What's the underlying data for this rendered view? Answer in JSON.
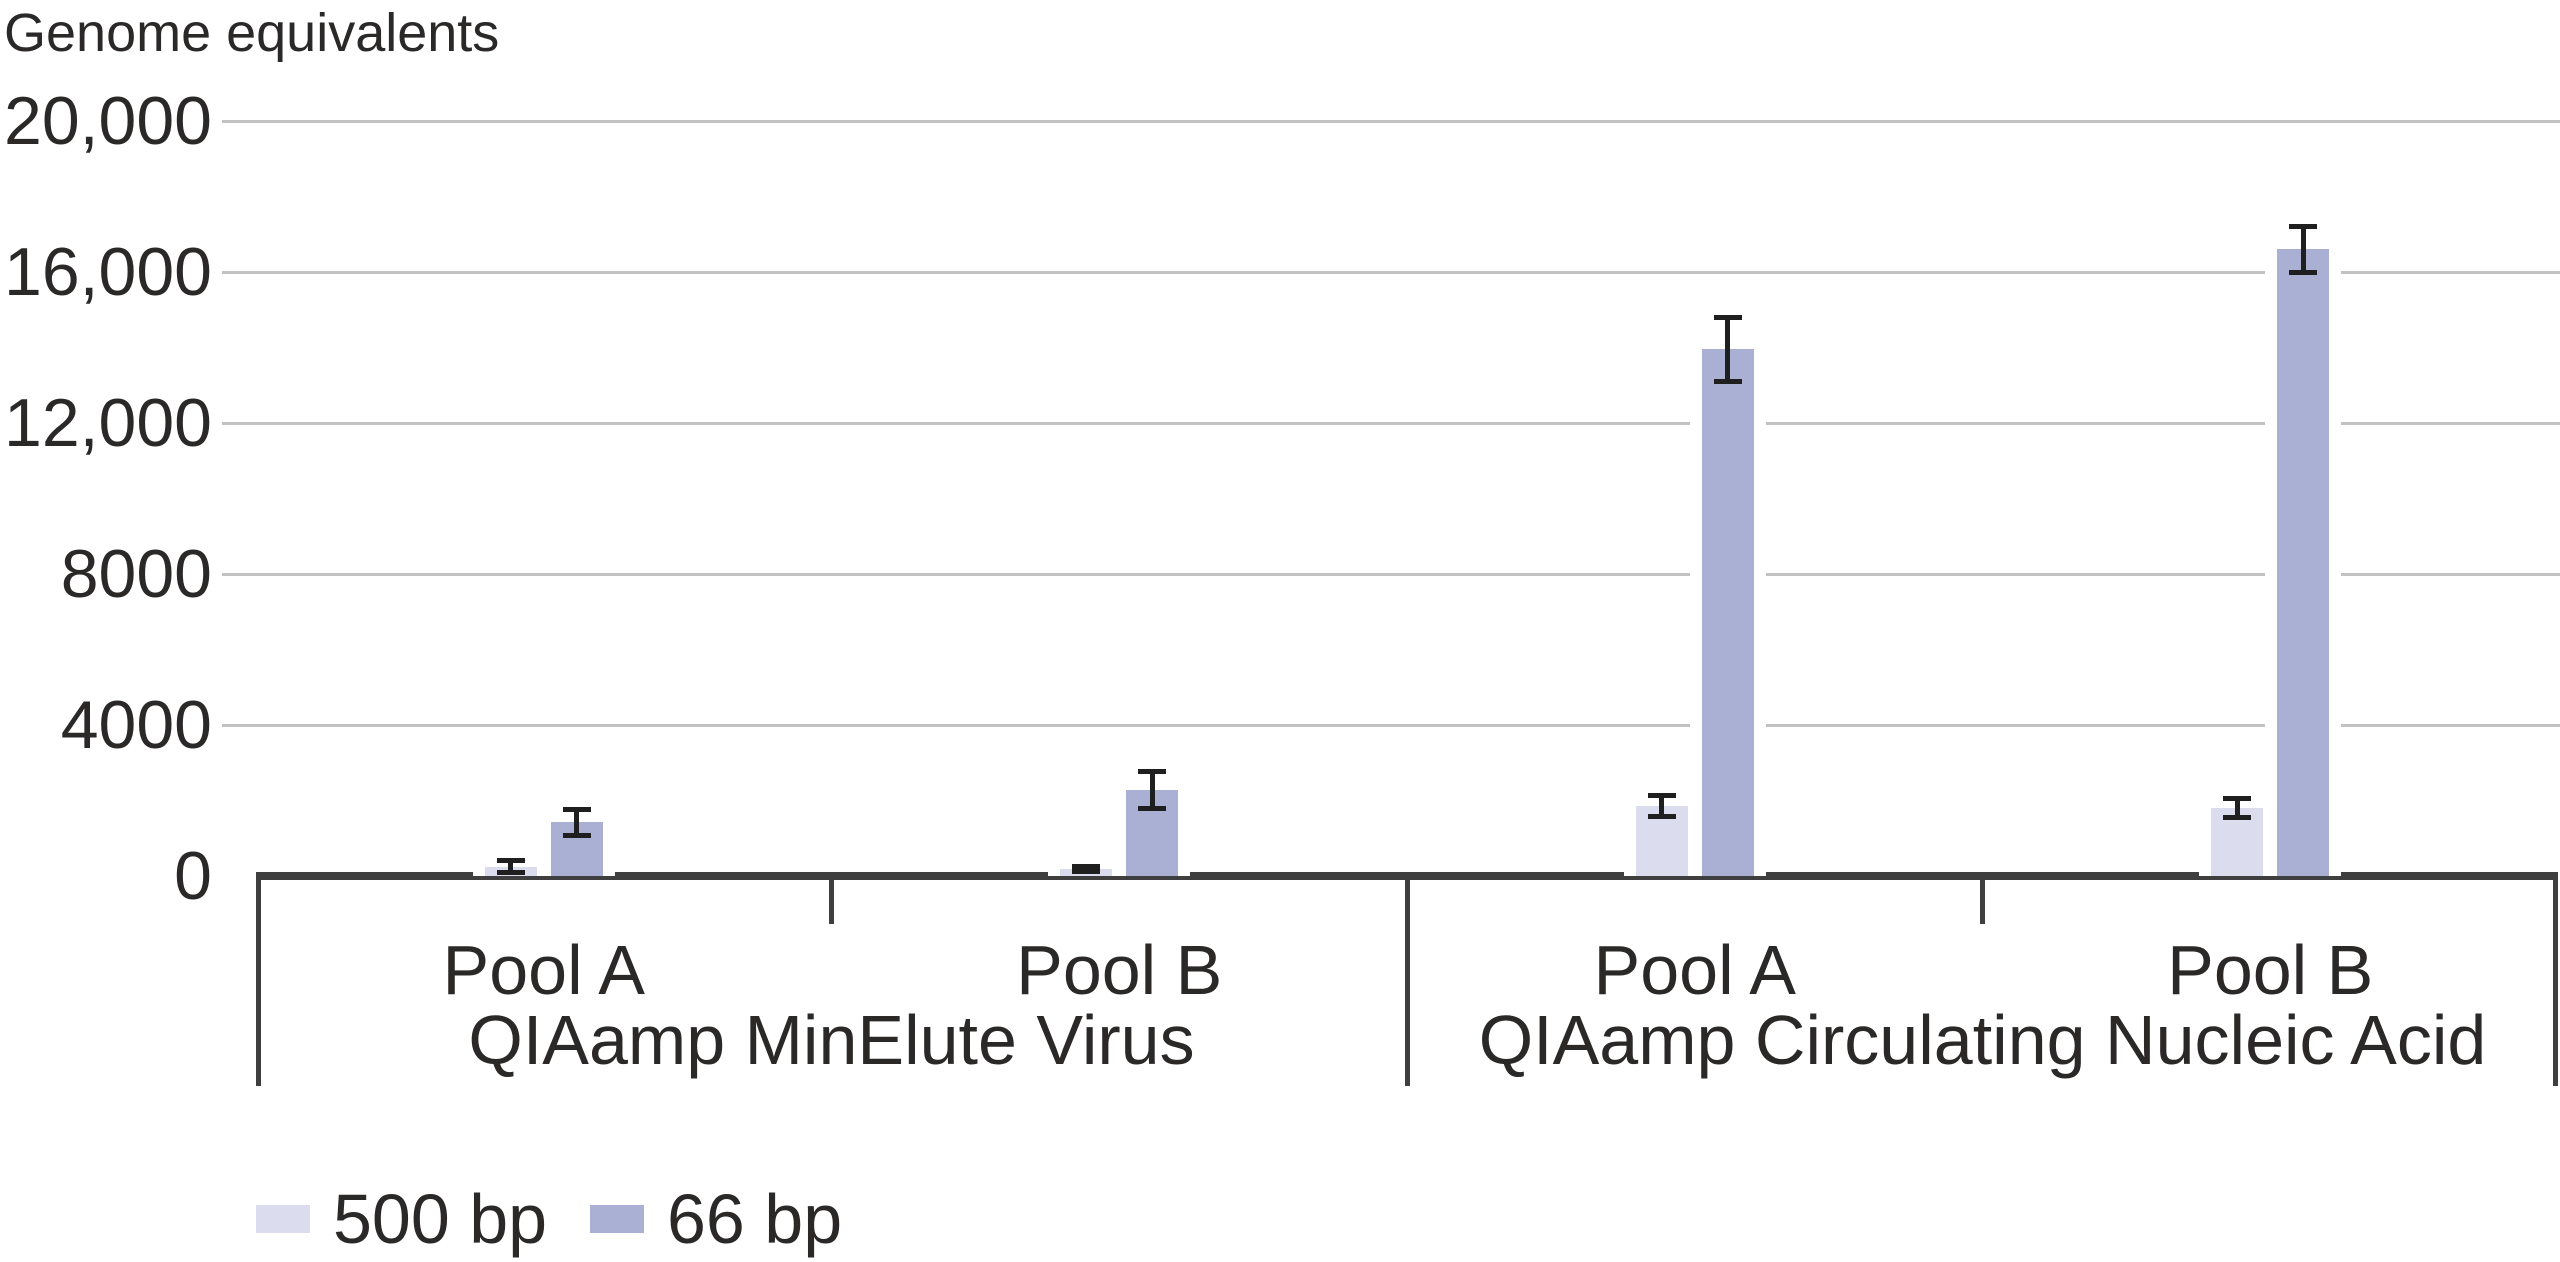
{
  "chart_data": {
    "type": "bar",
    "title": "Genome equivalents",
    "ylabel": "Genome equivalents",
    "xlabel": "",
    "ylim": [
      0,
      20000
    ],
    "grid": true,
    "legend_position": "bottom-left",
    "yticks": [
      {
        "value": 0,
        "label": "0"
      },
      {
        "value": 4000,
        "label": "4000"
      },
      {
        "value": 8000,
        "label": "8000"
      },
      {
        "value": 12000,
        "label": "12,000"
      },
      {
        "value": 16000,
        "label": "16,000"
      },
      {
        "value": 20000,
        "label": "20,000"
      }
    ],
    "series_names": [
      "500 bp",
      "66 bp"
    ],
    "groups": [
      {
        "label": "QIAamp MinElute Virus",
        "pools": [
          {
            "label": "Pool A",
            "bars": [
              {
                "series": "500 bp",
                "value": 250,
                "error": 150
              },
              {
                "series": "66 bp",
                "value": 1420,
                "error": 350
              }
            ]
          },
          {
            "label": "Pool B",
            "bars": [
              {
                "series": "500 bp",
                "value": 190,
                "error": 60
              },
              {
                "series": "66 bp",
                "value": 2280,
                "error": 500
              }
            ]
          }
        ]
      },
      {
        "label": "QIAamp Circulating Nucleic Acid",
        "pools": [
          {
            "label": "Pool A",
            "bars": [
              {
                "series": "500 bp",
                "value": 1850,
                "error": 270
              },
              {
                "series": "66 bp",
                "value": 13950,
                "error": 850
              }
            ]
          },
          {
            "label": "Pool B",
            "bars": [
              {
                "series": "500 bp",
                "value": 1800,
                "error": 250
              },
              {
                "series": "66 bp",
                "value": 16600,
                "error": 600
              }
            ]
          }
        ]
      }
    ],
    "legend": [
      {
        "label": "500 bp",
        "color": "#dbddee"
      },
      {
        "label": "66 bp",
        "color": "#a9b0d3"
      }
    ]
  },
  "colors": {
    "background": "#ffffff",
    "text": "#2b2828",
    "gridline": "#c2c2c2",
    "axis": "#3f3f3f",
    "error_bar": "#1f1f1f",
    "series_500bp": "#dbddee",
    "series_66bp": "#a9b0d3"
  }
}
